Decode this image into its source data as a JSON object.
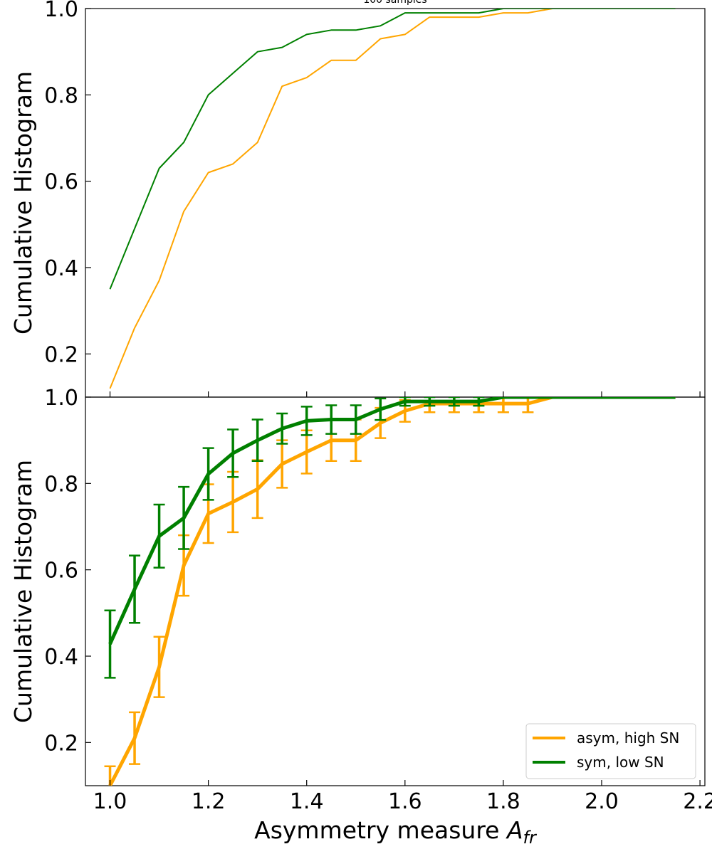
{
  "chart_data": [
    {
      "type": "line",
      "annotation": "100 samples",
      "ylabel": "Cumulative Histogram",
      "xlim": [
        0.95,
        2.21
      ],
      "ylim": [
        0.1,
        1.0
      ],
      "y_ticks": [
        "0.2",
        "0.4",
        "0.6",
        "0.8",
        "1.0"
      ],
      "x": [
        1.0,
        1.05,
        1.1,
        1.15,
        1.2,
        1.25,
        1.3,
        1.35,
        1.4,
        1.45,
        1.5,
        1.55,
        1.6,
        1.65,
        1.7,
        1.75,
        1.8,
        1.85,
        1.9,
        1.95,
        2.0,
        2.05,
        2.1,
        2.15
      ],
      "series": [
        {
          "color": "#ffa500",
          "values": [
            0.12,
            0.26,
            0.37,
            0.53,
            0.62,
            0.64,
            0.69,
            0.82,
            0.84,
            0.88,
            0.88,
            0.93,
            0.94,
            0.98,
            0.98,
            0.98,
            0.99,
            0.99,
            1.0,
            1.0,
            1.0,
            1.0,
            1.0,
            1.0
          ]
        },
        {
          "color": "#008000",
          "values": [
            0.35,
            0.49,
            0.63,
            0.69,
            0.8,
            0.85,
            0.9,
            0.91,
            0.94,
            0.95,
            0.95,
            0.96,
            0.99,
            0.99,
            0.99,
            0.99,
            1.0,
            1.0,
            1.0,
            1.0,
            1.0,
            1.0,
            1.0,
            1.0
          ]
        }
      ]
    },
    {
      "type": "line",
      "ylabel": "Cumulative Histogram",
      "xlabel": "Asymmetry measure ",
      "xlabel_symbol": "A",
      "xlabel_subscript": "fr",
      "xlim": [
        0.95,
        2.21
      ],
      "ylim": [
        0.1,
        1.0
      ],
      "x_ticks": [
        "1.0",
        "1.2",
        "1.4",
        "1.6",
        "1.8",
        "2.0",
        "2.2"
      ],
      "y_ticks": [
        "0.2",
        "0.4",
        "0.6",
        "0.8",
        "1.0"
      ],
      "legend_position": "lower-right",
      "x": [
        1.0,
        1.05,
        1.1,
        1.15,
        1.2,
        1.25,
        1.3,
        1.35,
        1.4,
        1.45,
        1.5,
        1.55,
        1.6,
        1.65,
        1.7,
        1.75,
        1.8,
        1.85,
        1.9,
        1.95,
        2.0,
        2.05,
        2.1,
        2.15
      ],
      "series": [
        {
          "name": "asym, high SN",
          "color": "#ffa500",
          "values": [
            0.1,
            0.21,
            0.375,
            0.61,
            0.73,
            0.757,
            0.787,
            0.845,
            0.873,
            0.9,
            0.9,
            0.94,
            0.968,
            0.985,
            0.985,
            0.985,
            0.985,
            0.985,
            1.0,
            1.0,
            1.0,
            1.0,
            1.0,
            1.0
          ],
          "errors": [
            0.045,
            0.06,
            0.07,
            0.07,
            0.068,
            0.07,
            0.067,
            0.055,
            0.05,
            0.048,
            0.048,
            0.035,
            0.025,
            0.02,
            0.02,
            0.02,
            0.02,
            0.02,
            0,
            0,
            0,
            0,
            0,
            0
          ]
        },
        {
          "name": "sym, low SN",
          "color": "#008000",
          "values": [
            0.428,
            0.555,
            0.678,
            0.72,
            0.822,
            0.87,
            0.9,
            0.927,
            0.945,
            0.948,
            0.948,
            0.972,
            0.99,
            0.99,
            0.99,
            0.99,
            1.0,
            1.0,
            1.0,
            1.0,
            1.0,
            1.0,
            1.0,
            1.0
          ],
          "errors": [
            0.078,
            0.078,
            0.073,
            0.072,
            0.06,
            0.055,
            0.048,
            0.035,
            0.033,
            0.033,
            0.033,
            0.025,
            0.01,
            0.01,
            0.01,
            0.01,
            0,
            0,
            0,
            0,
            0,
            0,
            0,
            0
          ]
        }
      ]
    }
  ]
}
